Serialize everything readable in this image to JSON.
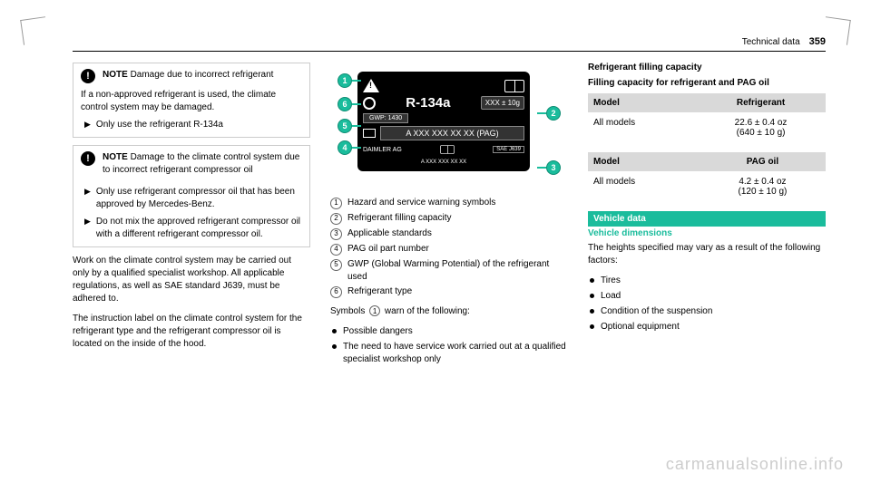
{
  "page": {
    "section": "Technical data",
    "number": "359"
  },
  "col1": {
    "note1": {
      "label": "NOTE",
      "title": "Damage due to incorrect refrigerant",
      "body": "If a non-approved refrigerant is used, the climate control system may be damaged.",
      "action": "Only use the refrigerant R-134a"
    },
    "note2": {
      "label": "NOTE",
      "title": "Damage to the climate control system due to incorrect refrigerant compressor oil",
      "action1": "Only use refrigerant compressor oil that has been approved by Mercedes-Benz.",
      "action2": "Do not mix the approved refrigerant compressor oil with a different refrigerant compressor oil."
    },
    "p1": "Work on the climate control system may be carried out only by a qualified specialist workshop. All applicable regulations, as well as SAE standard J639, must be adhered to.",
    "p2": "The instruction label on the climate control system for the refrigerant type and the refrigerant compressor oil is located on the inside of the hood."
  },
  "col2": {
    "diagram": {
      "refrigerant": "R-134a",
      "capacity": "XXX ± 10g",
      "gwp": "GWP: 1430",
      "pag": "A XXX XXX XX XX (PAG)",
      "mfr": "DAIMLER AG",
      "std": "SAE J639",
      "part": "A XXX XXX XX XX",
      "callout_color": "#1abc9c"
    },
    "legend": [
      {
        "n": "1",
        "text": "Hazard and service warning symbols"
      },
      {
        "n": "2",
        "text": "Refrigerant filling capacity"
      },
      {
        "n": "3",
        "text": "Applicable standards"
      },
      {
        "n": "4",
        "text": "PAG oil part number"
      },
      {
        "n": "5",
        "text": "GWP (Global Warming Potential) of the refrigerant used"
      },
      {
        "n": "6",
        "text": "Refrigerant type"
      }
    ],
    "symbols_intro": "Symbols",
    "symbols_after": "warn of the following:",
    "bullets": [
      "Possible dangers",
      "The need to have service work carried out at a qualified specialist workshop only"
    ]
  },
  "col3": {
    "h1": "Refrigerant filling capacity",
    "h2": "Filling capacity for refrigerant and PAG oil",
    "table1": {
      "col1": "Model",
      "col2": "Refrigerant",
      "row1_c1": "All models",
      "row1_c2": "22.6 ± 0.4 oz",
      "row1_c2b": "(640 ± 10 g)"
    },
    "table2": {
      "col1": "Model",
      "col2": "PAG oil",
      "row1_c1": "All models",
      "row1_c2": "4.2 ± 0.4 oz",
      "row1_c2b": "(120 ± 10 g)"
    },
    "sec": "Vehicle data",
    "sec_sub": "Vehicle dimensions",
    "p1": "The heights specified may vary as a result of the following factors:",
    "bullets": [
      "Tires",
      "Load",
      "Condition of the suspension",
      "Optional equipment"
    ]
  },
  "watermark": "carmanualsonline.info"
}
